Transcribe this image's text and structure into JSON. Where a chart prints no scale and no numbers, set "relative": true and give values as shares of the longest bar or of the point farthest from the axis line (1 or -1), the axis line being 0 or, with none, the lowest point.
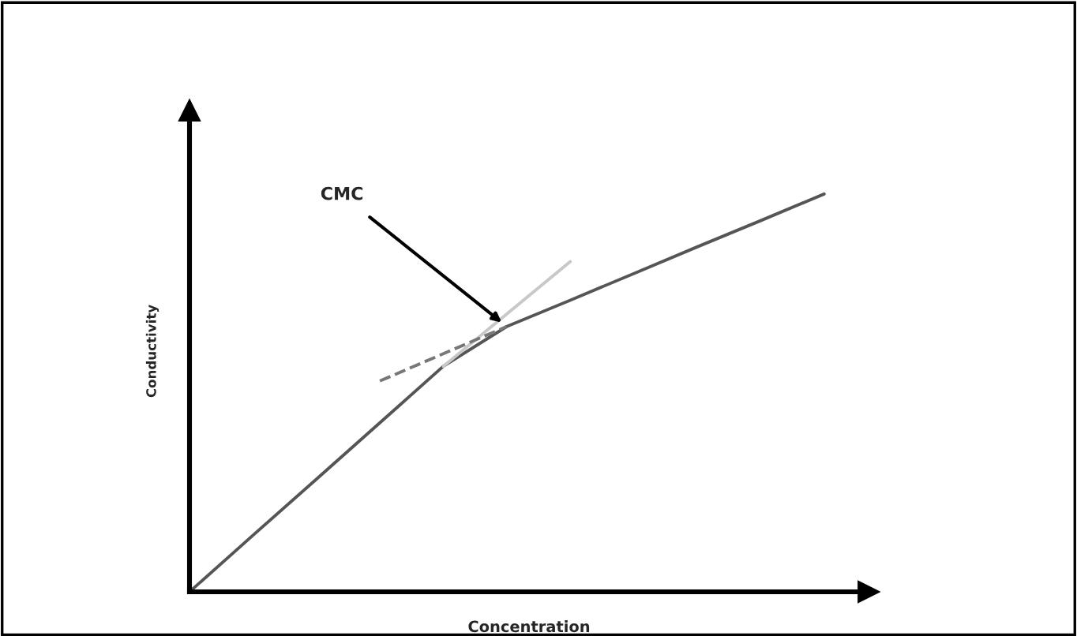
{
  "chart_data": {
    "type": "line",
    "relative": true,
    "xlabel": "Concentration",
    "ylabel": "Conductivity",
    "categories": [
      null,
      null,
      null,
      null,
      null,
      null,
      null,
      null,
      null,
      null,
      null
    ],
    "series": [
      {
        "color": "#555555",
        "values": [
          0,
          0.142,
          0.283,
          0.425,
          0.567,
          0.667,
          0.733,
          0.8,
          0.867,
          0.933,
          1.0
        ]
      },
      {
        "color": "#c8c8c8",
        "values": [
          null,
          null,
          null,
          null,
          0.567,
          null,
          0.83,
          null,
          null,
          null,
          null
        ]
      },
      {
        "color": "#777777",
        "line_style": "dashed",
        "values": [
          null,
          null,
          null,
          0.53,
          null,
          0.667,
          null,
          null,
          null,
          null,
          null
        ]
      }
    ],
    "annotations": [
      "CMC"
    ]
  }
}
